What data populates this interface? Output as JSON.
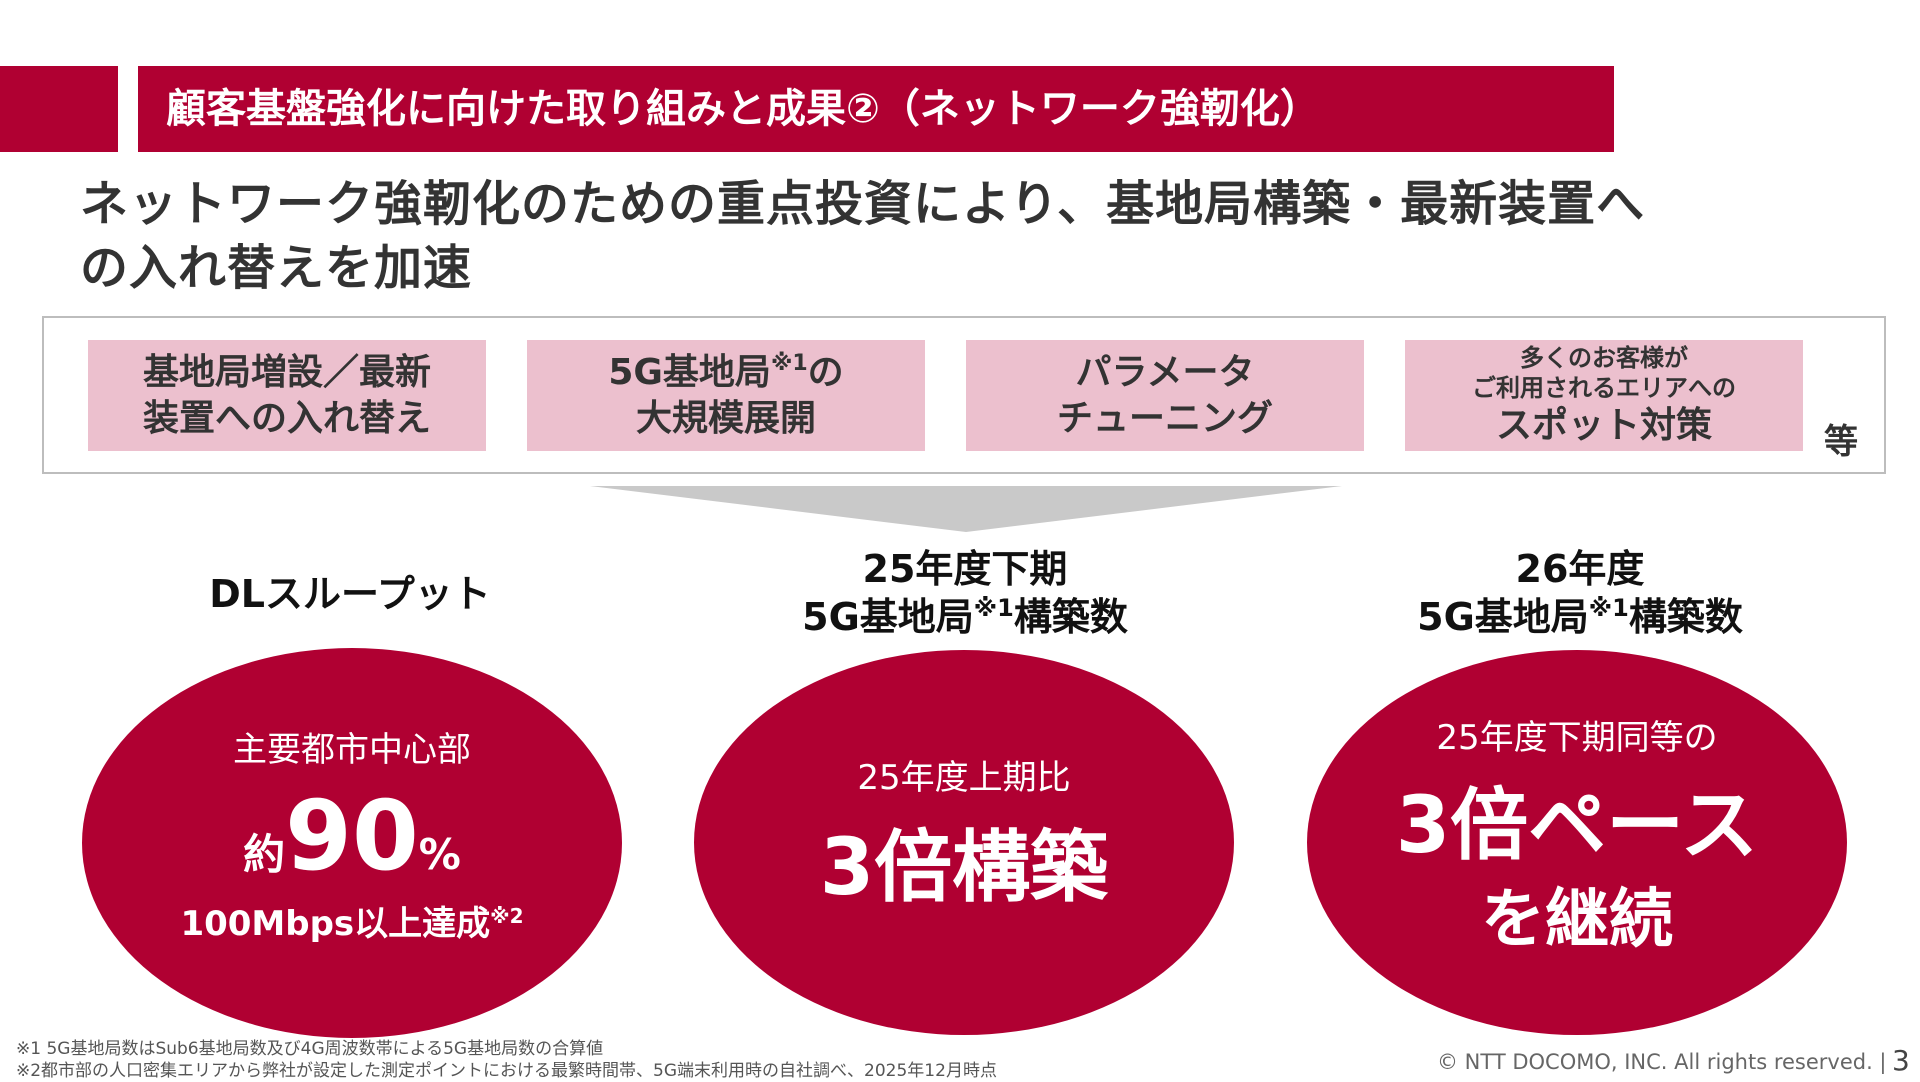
{
  "header": {
    "title": "顧客基盤強化に向けた取り組みと成果②（ネットワーク強靭化）"
  },
  "headline": {
    "line1": "ネットワーク強靭化のための重点投資により、基地局構築・最新装置へ",
    "line2": "の入れ替えを加速"
  },
  "measures": [
    {
      "line1": "基地局増設／最新",
      "line2": "装置への入れ替え"
    },
    {
      "line1": "5G基地局",
      "note": "※1",
      "line1_suffix": "の",
      "line2": "大規模展開"
    },
    {
      "line1": "パラメータ",
      "line2": "チューニング"
    },
    {
      "small1": "多くのお客様が",
      "small2": "ご利用されるエリアへの",
      "line2": "スポット対策"
    }
  ],
  "measures_etc": "等",
  "columns": [
    {
      "title": "DLスループット",
      "ellipse": {
        "line1": "主要都市中心部",
        "prefix": "約",
        "value": "90",
        "unit": "%",
        "line3": "100Mbps以上達成",
        "note": "※2"
      }
    },
    {
      "title_line1": "25年度下期",
      "title_line2_a": "5G基地局",
      "title_note": "※1",
      "title_line2_b": "構築数",
      "ellipse": {
        "line1": "25年度上期比",
        "value": "3倍構築"
      }
    },
    {
      "title_line1": "26年度",
      "title_line2_a": "5G基地局",
      "title_note": "※1",
      "title_line2_b": "構築数",
      "ellipse": {
        "line1": "25年度下期同等の",
        "value1": "3倍ペース",
        "value2": "を継続"
      }
    }
  ],
  "footnotes": [
    "※1 5G基地局数はSub6基地局数及び4G周波数帯による5G基地局数の合算値",
    "※2都市部の人口密集エリアから弊社が設定した測定ポイントにおける最繁時間帯、5G端末利用時の自社調べ、2025年12月時点"
  ],
  "copyright": "© NTT DOCOMO, INC.  All rights reserved.  |",
  "page_number": "3",
  "colors": {
    "accent": "#b00032",
    "pink": "#ecc0ce",
    "funnel": "#c9c9c9"
  }
}
